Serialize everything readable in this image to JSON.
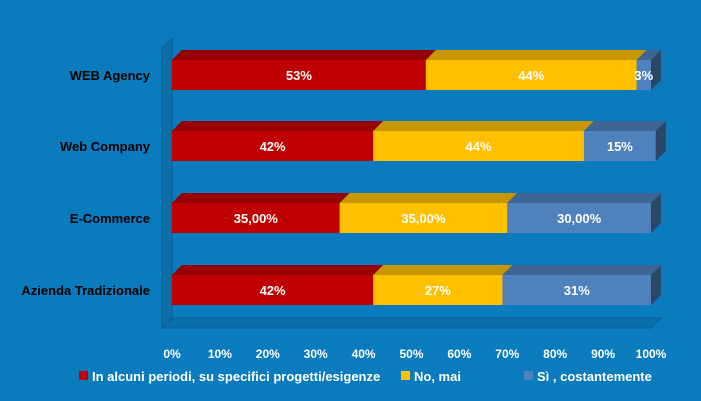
{
  "chart_data": {
    "type": "bar",
    "orientation": "horizontal",
    "stacked": true,
    "percent_stacked": true,
    "categories": [
      "WEB Agency",
      "Web Company",
      "E-Commerce",
      "Azienda Tradizionale"
    ],
    "series": [
      {
        "name": "In alcuni periodi, su specifici progetti/esigenze",
        "color": "#c00000",
        "values": [
          53,
          42,
          35,
          42
        ],
        "labels": [
          "53%",
          "42%",
          "35,00%",
          "42%"
        ]
      },
      {
        "name": "No, mai",
        "color": "#ffc000",
        "values": [
          44,
          44,
          35,
          27
        ],
        "labels": [
          "44%",
          "44%",
          "35,00%",
          "27%"
        ]
      },
      {
        "name": "Sì , costantemente",
        "color": "#4f81bd",
        "values": [
          3,
          15,
          30,
          31
        ],
        "labels": [
          "3%",
          "15%",
          "30,00%",
          "31%"
        ]
      }
    ],
    "xlim": [
      0,
      100
    ],
    "x_ticks": [
      "0%",
      "10%",
      "20%",
      "30%",
      "40%",
      "50%",
      "60%",
      "70%",
      "80%",
      "90%",
      "100%"
    ],
    "legend_position": "bottom",
    "title": "",
    "xlabel": "",
    "ylabel": ""
  }
}
